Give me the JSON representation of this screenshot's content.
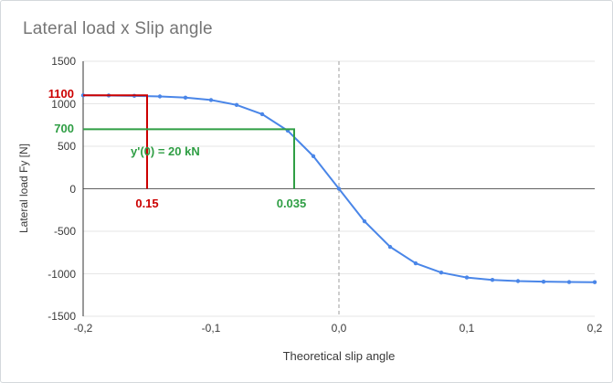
{
  "chart_data": {
    "type": "line",
    "title": "Lateral load x Slip angle",
    "xlabel": "Theoretical slip angle",
    "ylabel": "Lateral load Fy [N]",
    "xlim": [
      -0.2,
      0.2
    ],
    "ylim": [
      -1500,
      1500
    ],
    "grid": "horizontal",
    "legend": "none",
    "x_tick_labels": [
      "-0,2",
      "-0,1",
      "0,0",
      "0,1",
      "0,2"
    ],
    "x_ticks": [
      -0.2,
      -0.1,
      0,
      0.1,
      0.2
    ],
    "y_tick_labels": [
      "1500",
      "1000",
      "500",
      "0",
      "-500",
      "-1000",
      "-1500"
    ],
    "y_ticks": [
      1500,
      1000,
      500,
      0,
      -500,
      -1000,
      -1500
    ],
    "colors": {
      "grid": "#e6e6e6",
      "zero_line": "#616161",
      "center_line": "#9e9e9e",
      "axis": "#333333"
    },
    "series": [
      {
        "name": "Lateral load Fy",
        "color": "#4a86e8",
        "x": [
          -0.2,
          -0.18,
          -0.16,
          -0.14,
          -0.12,
          -0.1,
          -0.08,
          -0.06,
          -0.04,
          -0.02,
          0,
          0.02,
          0.04,
          0.06,
          0.08,
          0.1,
          0.12,
          0.14,
          0.16,
          0.18,
          0.2
        ],
        "y": [
          1099,
          1097,
          1093,
          1086,
          1072,
          1044,
          986,
          877,
          683,
          383,
          0,
          -383,
          -683,
          -877,
          -986,
          -1044,
          -1072,
          -1086,
          -1093,
          -1097,
          -1099
        ]
      }
    ],
    "annotations": {
      "red": {
        "color": "#cc0000",
        "y_value": 1100,
        "y_label": "1100",
        "x_value": -0.15,
        "x_label": "0.15"
      },
      "green": {
        "color": "#2f9e44",
        "y_value": 700,
        "y_label": "700",
        "x_value": -0.035,
        "x_label": "0.035",
        "note": "y'(0) = 20 kN"
      }
    }
  }
}
